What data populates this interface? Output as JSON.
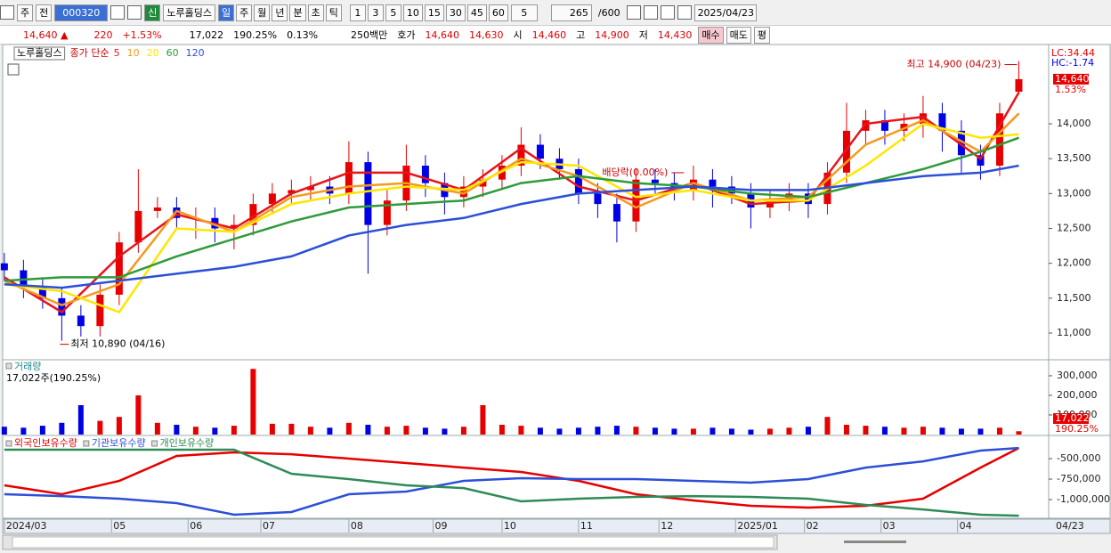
{
  "toolbar": {
    "market": "주",
    "view": "전",
    "code": "000320",
    "badge": "신",
    "name": "노루홀딩스",
    "periods": [
      "일",
      "주",
      "월",
      "년",
      "분",
      "초",
      "틱"
    ],
    "intervals": [
      "1",
      "3",
      "5",
      "10",
      "15",
      "30",
      "45",
      "60"
    ],
    "interval_select": "5",
    "count": "265",
    "count_max": "/600",
    "date": "2025/04/23"
  },
  "quote": {
    "price": "14,640 ▲",
    "change": "220",
    "change_pct": "+1.53%",
    "volume": "17,022",
    "volume_ratio": "190.25%",
    "turnover": "0.13%",
    "amount": "250백만",
    "ask_label": "호가",
    "ask": "14,640",
    "bid": "14,630",
    "open_label": "시",
    "open": "14,460",
    "high_label": "고",
    "high": "14,900",
    "low_label": "저",
    "low": "14,430",
    "buy": "매수",
    "sell": "매도",
    "avg": "평"
  },
  "chart_data": [
    {
      "type": "candlestick",
      "title": "노루홀딩스",
      "subtitle": "종가 단순",
      "up_color": "#e60000",
      "down_color": "#0000e6",
      "x": [
        0,
        5,
        10,
        15,
        20,
        25,
        30,
        35,
        40,
        45,
        50,
        55,
        60,
        65,
        70,
        75,
        80,
        85,
        90,
        95,
        100,
        105,
        110,
        115,
        120,
        125,
        130,
        135,
        140,
        145,
        150,
        155,
        160,
        165,
        170,
        175,
        180,
        185,
        190,
        195,
        200,
        205,
        210,
        215,
        220,
        225,
        230,
        235,
        240,
        245,
        250,
        255,
        260,
        265
      ],
      "open": [
        12000,
        11900,
        11650,
        11500,
        11250,
        11100,
        11550,
        12300,
        12750,
        12800,
        12650,
        12650,
        12500,
        12550,
        12850,
        13000,
        13050,
        13100,
        13000,
        13450,
        12550,
        12900,
        13400,
        13150,
        12950,
        13100,
        13200,
        13400,
        13700,
        13500,
        13350,
        13000,
        12850,
        12600,
        13200,
        13150,
        13050,
        13200,
        13100,
        13000,
        12800,
        12900,
        13000,
        12850,
        13300,
        13900,
        14050,
        13900,
        14000,
        14150,
        13900,
        13550,
        13400,
        14460
      ],
      "high": [
        12150,
        12050,
        11800,
        11650,
        11400,
        11700,
        12450,
        13350,
        12950,
        12950,
        12800,
        12800,
        12700,
        13000,
        13150,
        13200,
        13250,
        13250,
        13750,
        13600,
        13050,
        13700,
        13550,
        13300,
        13250,
        13350,
        13550,
        13950,
        13850,
        13650,
        13500,
        13150,
        13000,
        13350,
        13350,
        13300,
        13400,
        13350,
        13250,
        13150,
        13050,
        13150,
        13150,
        13450,
        14300,
        14200,
        14200,
        14150,
        14400,
        14300,
        14050,
        13700,
        14300,
        14900
      ],
      "low": [
        11750,
        11500,
        11350,
        10890,
        10950,
        10950,
        11400,
        12150,
        12650,
        12500,
        12350,
        12300,
        12200,
        12400,
        12700,
        12850,
        12900,
        12850,
        12850,
        11850,
        12400,
        12750,
        12950,
        12700,
        12800,
        12950,
        13050,
        13250,
        13350,
        13200,
        12850,
        12650,
        12300,
        12450,
        13000,
        12900,
        12900,
        12800,
        12850,
        12500,
        12650,
        12750,
        12650,
        12700,
        13150,
        13700,
        13700,
        13750,
        13800,
        13600,
        13300,
        13200,
        13250,
        14430
      ],
      "close": [
        11900,
        11650,
        11500,
        11250,
        11100,
        11550,
        12300,
        12750,
        12800,
        12650,
        12650,
        12500,
        12550,
        12850,
        13000,
        13050,
        13100,
        13000,
        13450,
        12550,
        12900,
        13400,
        13150,
        12950,
        13100,
        13200,
        13400,
        13700,
        13500,
        13350,
        13000,
        12850,
        12600,
        13200,
        13150,
        13050,
        13200,
        13100,
        13000,
        12800,
        12900,
        13000,
        12850,
        13300,
        13900,
        14050,
        13900,
        14000,
        14150,
        13900,
        13550,
        13400,
        14150,
        14640
      ],
      "series": [
        {
          "name": "5",
          "color": "#e8141c",
          "x": [
            0,
            15,
            30,
            45,
            60,
            75,
            90,
            105,
            120,
            135,
            150,
            165,
            180,
            195,
            210,
            225,
            240,
            255,
            265
          ],
          "values": [
            11800,
            11300,
            12100,
            12700,
            12500,
            13000,
            13300,
            13300,
            13050,
            13650,
            13100,
            12900,
            13150,
            12850,
            12900,
            14000,
            14100,
            13500,
            14450
          ]
        },
        {
          "name": "10",
          "color": "#f39a1e",
          "x": [
            0,
            15,
            30,
            45,
            60,
            75,
            90,
            105,
            120,
            135,
            150,
            165,
            180,
            195,
            210,
            225,
            240,
            255,
            265
          ],
          "values": [
            11750,
            11400,
            11700,
            12750,
            12450,
            12950,
            13100,
            13150,
            13000,
            13500,
            13250,
            12800,
            13150,
            12900,
            12950,
            13700,
            14050,
            13600,
            14150
          ]
        },
        {
          "name": "20",
          "color": "#ffe600",
          "x": [
            0,
            15,
            30,
            45,
            60,
            75,
            90,
            105,
            120,
            135,
            150,
            165,
            180,
            195,
            210,
            225,
            240,
            255,
            265
          ],
          "values": [
            11700,
            11600,
            11300,
            12500,
            12450,
            12850,
            13000,
            13100,
            13050,
            13450,
            13400,
            12950,
            13050,
            12900,
            12900,
            13400,
            14000,
            13800,
            13850
          ]
        },
        {
          "name": "60",
          "color": "#2e9b3a",
          "x": [
            0,
            15,
            30,
            45,
            60,
            75,
            90,
            105,
            120,
            135,
            150,
            165,
            180,
            195,
            210,
            225,
            240,
            255,
            265
          ],
          "values": [
            11750,
            11800,
            11800,
            12100,
            12350,
            12600,
            12800,
            12850,
            12900,
            13150,
            13250,
            13150,
            13100,
            13000,
            12950,
            13150,
            13350,
            13600,
            13800
          ]
        },
        {
          "name": "120",
          "color": "#2c4fd8",
          "x": [
            0,
            15,
            30,
            45,
            60,
            75,
            90,
            105,
            120,
            135,
            150,
            165,
            180,
            195,
            210,
            225,
            240,
            255,
            265
          ],
          "values": [
            11700,
            11650,
            11750,
            11850,
            11950,
            12100,
            12400,
            12550,
            12650,
            12850,
            13000,
            13050,
            13100,
            13050,
            13050,
            13150,
            13250,
            13300,
            13400
          ]
        }
      ],
      "xlim": [
        -0.2,
        272.8
      ],
      "ylim": [
        10630,
        15111
      ],
      "yticks": [
        {
          "value": 11000,
          "label": "11,000"
        },
        {
          "value": 11500,
          "label": "11,500"
        },
        {
          "value": 12000,
          "label": "12,000"
        },
        {
          "value": 12500,
          "label": "12,500"
        },
        {
          "value": 13000,
          "label": "13,000"
        },
        {
          "value": 13500,
          "label": "13,500"
        },
        {
          "value": 14000,
          "label": "14,000"
        }
      ],
      "xticks": [
        {
          "value": 0,
          "label": "2024/03"
        },
        {
          "value": 28,
          "label": "05"
        },
        {
          "value": 48,
          "label": "06"
        },
        {
          "value": 67,
          "label": "07"
        },
        {
          "value": 90,
          "label": "08"
        },
        {
          "value": 112,
          "label": "09"
        },
        {
          "value": 130,
          "label": "10"
        },
        {
          "value": 150,
          "label": "11"
        },
        {
          "value": 171,
          "label": "12"
        },
        {
          "value": 191,
          "label": "2025/01"
        },
        {
          "value": 209,
          "label": "02"
        },
        {
          "value": 229,
          "label": "03"
        },
        {
          "value": 249,
          "label": "04"
        }
      ],
      "x_end_label": "04/23",
      "annotations": [
        {
          "text": "최고 14,900 (04/23)",
          "x": 265,
          "y": 14900
        },
        {
          "text": "최저 10,890 (04/16)",
          "x": 15,
          "y": 10890
        },
        {
          "text": "배당락(0.00%)",
          "x": 178,
          "y": 13350
        }
      ],
      "corner_texts": [
        {
          "text": "LC:34.44",
          "color": "#e60000"
        },
        {
          "text": "HC:-1.74",
          "color": "#0000e6"
        }
      ],
      "last_price": {
        "value": 14640,
        "label": "14,640"
      },
      "last_change": "1.53%"
    },
    {
      "type": "bar",
      "title": "거래량",
      "subtitle": "17,022주(190.25%)",
      "x": [
        0,
        5,
        10,
        15,
        20,
        25,
        30,
        35,
        40,
        45,
        50,
        55,
        60,
        65,
        70,
        75,
        80,
        85,
        90,
        95,
        100,
        105,
        110,
        115,
        120,
        125,
        130,
        135,
        140,
        145,
        150,
        155,
        160,
        165,
        170,
        175,
        180,
        185,
        190,
        195,
        200,
        205,
        210,
        215,
        220,
        225,
        230,
        235,
        240,
        245,
        250,
        255,
        260,
        265
      ],
      "values": [
        40000,
        35000,
        45000,
        60000,
        150000,
        70000,
        90000,
        200000,
        60000,
        50000,
        40000,
        35000,
        45000,
        335000,
        55000,
        55000,
        40000,
        35000,
        60000,
        50000,
        40000,
        45000,
        35000,
        30000,
        40000,
        150000,
        50000,
        45000,
        35000,
        30000,
        35000,
        40000,
        45000,
        40000,
        35000,
        30000,
        30000,
        35000,
        30000,
        25000,
        30000,
        35000,
        40000,
        90000,
        50000,
        45000,
        40000,
        35000,
        40000,
        35000,
        30000,
        30000,
        35000,
        17022
      ],
      "ylim": [
        0,
        377000
      ],
      "yticks": [
        {
          "value": 100000,
          "label": "100,000"
        },
        {
          "value": 200000,
          "label": "200,000"
        },
        {
          "value": 300000,
          "label": "300,000"
        }
      ],
      "last_label": "17,022",
      "last_ratio": "190.25%"
    },
    {
      "type": "line",
      "x": [
        0,
        15,
        30,
        45,
        60,
        75,
        90,
        105,
        120,
        135,
        150,
        165,
        180,
        195,
        210,
        225,
        240,
        255,
        265
      ],
      "series": [
        {
          "name": "외국인보유수량",
          "color": "#e60000",
          "values": [
            -826000,
            -935000,
            -772000,
            -467000,
            -424000,
            -446000,
            -500000,
            -554000,
            -609000,
            -663000,
            -772000,
            -935000,
            -1011000,
            -1076000,
            -1098000,
            -1076000,
            -989000,
            -609000,
            -370000
          ]
        },
        {
          "name": "기관보유수량",
          "color": "#2c4fd8",
          "values": [
            -935000,
            -957000,
            -989000,
            -1043000,
            -1185000,
            -1152000,
            -935000,
            -902000,
            -772000,
            -739000,
            -750000,
            -750000,
            -772000,
            -793000,
            -750000,
            -609000,
            -533000,
            -402000,
            -370000
          ]
        },
        {
          "name": "개인보유수량",
          "color": "#2e8b57",
          "values": [
            -391000,
            -391000,
            -391000,
            -391000,
            -391000,
            -685000,
            -750000,
            -826000,
            -859000,
            -1022000,
            -989000,
            -967000,
            -957000,
            -967000,
            -989000,
            -1065000,
            -1120000,
            -1185000,
            -1196000
          ]
        }
      ],
      "ylim": [
        -1228000,
        -228000
      ],
      "yticks": [
        {
          "value": -500000,
          "label": "-500,000"
        },
        {
          "value": -750000,
          "label": "-750,000"
        },
        {
          "value": -1000000,
          "label": "-1,000,000"
        }
      ]
    }
  ]
}
